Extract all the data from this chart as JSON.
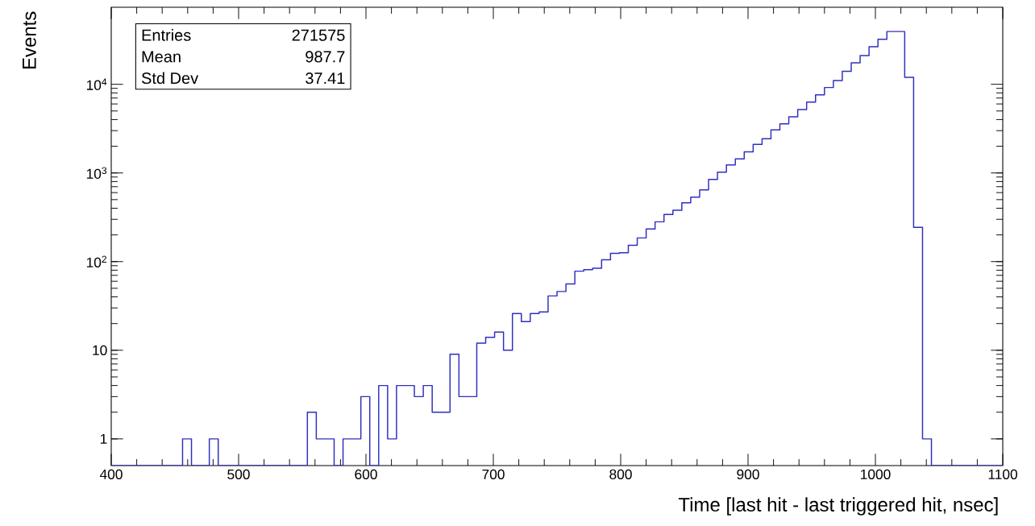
{
  "chart_data": {
    "type": "histogram",
    "xlabel": "Time [last hit - last triggered hit, nsec]",
    "ylabel": "Events",
    "bins": [
      400,
      407,
      414,
      421,
      428,
      435,
      442,
      449,
      456,
      463,
      470,
      477,
      484,
      491,
      498,
      505,
      512,
      519,
      526,
      533,
      540,
      547,
      554,
      561,
      568,
      575,
      582,
      589,
      596,
      603,
      610,
      617,
      624,
      631,
      638,
      645,
      652,
      659,
      666,
      673,
      680,
      687,
      694,
      701,
      708,
      715,
      722,
      729,
      736,
      743,
      750,
      757,
      764,
      771,
      778,
      785,
      792,
      799,
      806,
      813,
      820,
      827,
      834,
      841,
      848,
      855,
      862,
      869,
      876,
      883,
      890,
      897,
      904,
      911,
      918,
      925,
      932,
      939,
      946,
      953,
      960,
      967,
      974,
      981,
      988,
      995,
      1002,
      1009,
      1016,
      1023,
      1030,
      1037,
      1044,
      1051,
      1058,
      1065,
      1072,
      1079,
      1086,
      1093,
      1100
    ],
    "values": [
      null,
      null,
      null,
      null,
      null,
      null,
      null,
      null,
      1,
      null,
      null,
      1,
      null,
      null,
      null,
      null,
      null,
      null,
      null,
      null,
      null,
      null,
      2,
      1,
      1,
      null,
      1,
      1,
      3,
      null,
      4,
      1,
      4,
      4,
      3,
      4,
      2,
      2,
      9,
      3,
      3,
      12,
      14,
      16,
      10,
      26,
      21,
      26,
      27,
      41,
      46,
      56,
      78,
      81,
      84,
      105,
      124,
      126,
      153,
      185,
      233,
      281,
      340,
      379,
      461,
      534,
      644,
      845,
      1020,
      1230,
      1440,
      1730,
      2100,
      2430,
      3060,
      3580,
      4300,
      5200,
      6300,
      7600,
      9200,
      11000,
      14000,
      17500,
      21100,
      26600,
      32200,
      39400,
      39400,
      12000,
      243,
      1,
      null,
      null,
      null,
      null,
      null,
      null,
      null,
      null
    ],
    "color": "#2f2fc0",
    "log": "y",
    "xlim": [
      400,
      1100
    ],
    "ylim": [
      0.5,
      74000
    ],
    "xticks": [
      400,
      500,
      600,
      700,
      800,
      900,
      1000,
      1100
    ],
    "yticks": [
      1,
      10,
      {
        "value": 100,
        "label": "10$^{2}$"
      },
      {
        "value": 1000,
        "label": "10$^{3}$"
      },
      {
        "value": 10000,
        "label": "10$^{4}$"
      }
    ],
    "annotations": [
      "Entries",
      "271575",
      "Mean",
      "987.7",
      "Std Dev",
      "37.41"
    ]
  }
}
